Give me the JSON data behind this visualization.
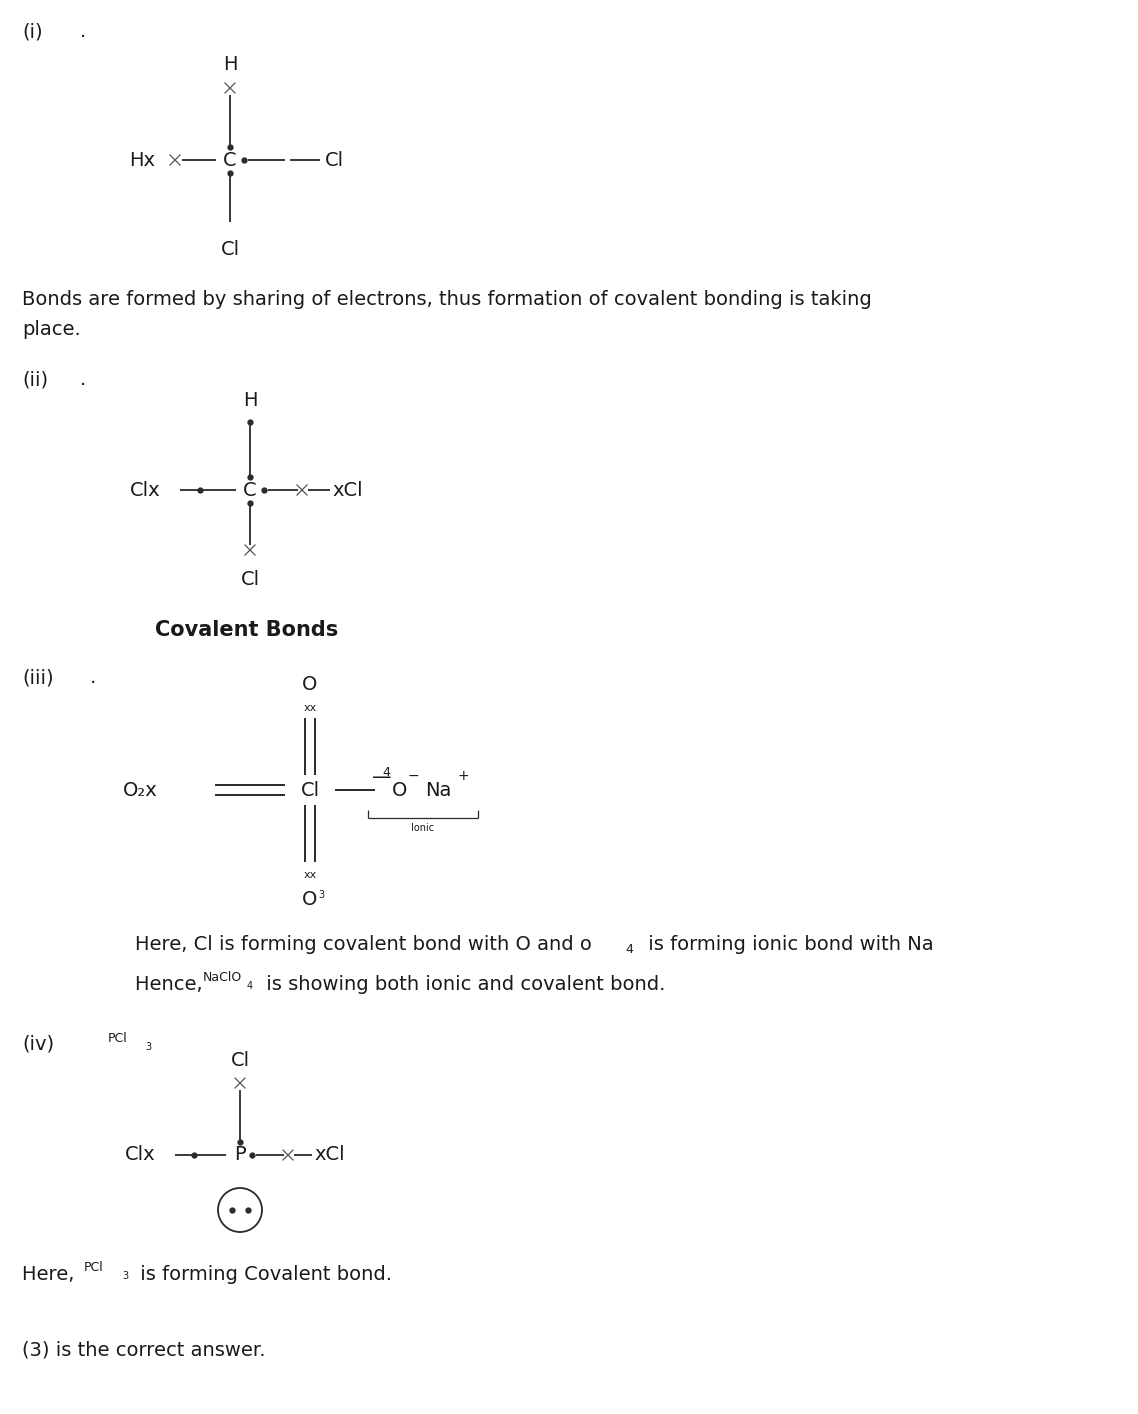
{
  "bg_color": "#ffffff",
  "text_color": "#1a1a1a",
  "body_fontsize": 14,
  "small_fontsize": 9,
  "mono_family": "monospace",
  "label_i": "(i)",
  "label_ii": "(ii)",
  "label_iii": "(iii)",
  "label_iv": "(iv)",
  "text_i_line1": "Bonds are formed by sharing of electrons, thus formation of covalent bonding is taking",
  "text_i_line2": "place.",
  "text_ii_covalent": "Covalent Bonds",
  "text_iii_a": "Here, Cl is forming covalent bond with O and o",
  "text_iii_a_sub": "4",
  "text_iii_a2": " is forming ionic bond with Na",
  "text_iii_b": "Hence, ",
  "text_iii_b_formula": "NaClO",
  "text_iii_b_sub": "4",
  "text_iii_b2": " is showing both ionic and covalent bond.",
  "text_iv_formula": "PCl",
  "text_iv_sub": "3",
  "text_iv_a": "Here, ",
  "text_iv_a_formula": "PCl",
  "text_iv_a_sub": "3",
  "text_iv_a2": " is forming Covalent bond.",
  "text_final": "(3) is the correct answer."
}
